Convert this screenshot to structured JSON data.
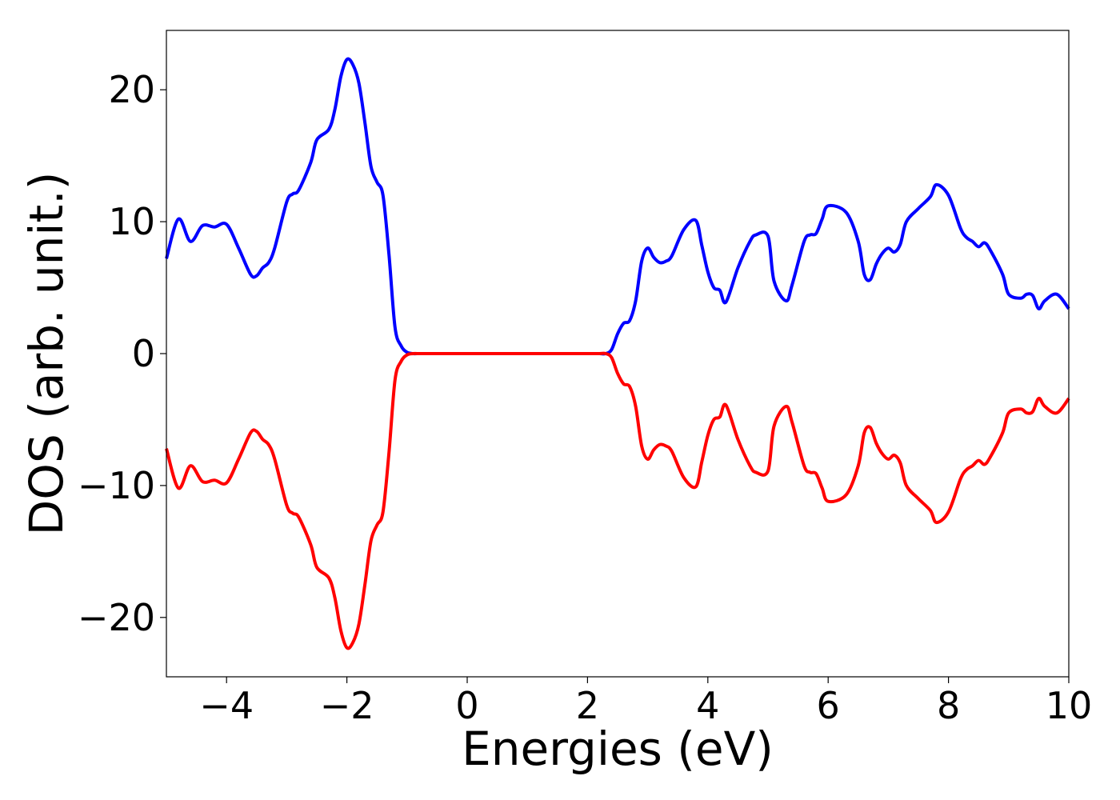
{
  "chart_data": {
    "type": "line",
    "title": "",
    "xlabel": "Energies (eV)",
    "ylabel": "DOS (arb. unit.)",
    "xlim": [
      -5,
      10
    ],
    "ylim": [
      -24.5,
      24.5
    ],
    "xticks": [
      -4,
      -2,
      0,
      2,
      4,
      6,
      8,
      10
    ],
    "xtick_labels": [
      "−4",
      "−2",
      "0",
      "2",
      "4",
      "6",
      "8",
      "10"
    ],
    "yticks": [
      -20,
      -10,
      0,
      10,
      20
    ],
    "ytick_labels": [
      "−20",
      "−10",
      "0",
      "10",
      "20"
    ],
    "grid": false,
    "legend": "none",
    "series": [
      {
        "color": "#0000ff",
        "x": [
          -5.0,
          -4.8,
          -4.6,
          -4.4,
          -4.2,
          -4.0,
          -3.8,
          -3.6,
          -3.5,
          -3.4,
          -3.3,
          -3.2,
          -3.0,
          -2.9,
          -2.8,
          -2.6,
          -2.5,
          -2.3,
          -2.2,
          -2.1,
          -2.0,
          -1.9,
          -1.8,
          -1.7,
          -1.6,
          -1.5,
          -1.4,
          -1.3,
          -1.2,
          -1.1,
          -1.0,
          -0.9,
          -0.8,
          -0.7,
          -0.6,
          -0.5,
          0.0,
          1.0,
          2.0,
          2.2,
          2.3,
          2.4,
          2.5,
          2.6,
          2.7,
          2.8,
          2.9,
          3.0,
          3.1,
          3.2,
          3.3,
          3.4,
          3.6,
          3.8,
          3.9,
          4.0,
          4.1,
          4.2,
          4.3,
          4.5,
          4.7,
          4.8,
          5.0,
          5.1,
          5.3,
          5.4,
          5.6,
          5.7,
          5.8,
          5.9,
          6.0,
          6.3,
          6.5,
          6.6,
          6.7,
          6.8,
          6.9,
          7.0,
          7.1,
          7.2,
          7.3,
          7.5,
          7.7,
          7.8,
          8.0,
          8.2,
          8.3,
          8.4,
          8.5,
          8.6,
          8.7,
          8.9,
          9.0,
          9.2,
          9.3,
          9.4,
          9.5,
          9.6,
          9.8,
          10.0
        ],
        "y": [
          7.2,
          10.2,
          8.5,
          9.7,
          9.6,
          9.8,
          8.0,
          6.0,
          5.9,
          6.5,
          6.9,
          8.0,
          11.5,
          12.1,
          12.4,
          14.5,
          16.2,
          17.0,
          18.5,
          21.0,
          22.3,
          21.9,
          20.5,
          17.5,
          14.2,
          13.0,
          12.0,
          7.5,
          2.0,
          0.6,
          0.1,
          0.0,
          0.0,
          0.0,
          0.0,
          0.0,
          0.0,
          0.0,
          0.0,
          0.0,
          0.0,
          0.3,
          1.5,
          2.3,
          2.5,
          4.0,
          7.0,
          8.0,
          7.3,
          6.9,
          7.0,
          7.4,
          9.4,
          10.1,
          8.2,
          6.2,
          5.0,
          4.8,
          3.9,
          6.5,
          8.5,
          9.0,
          8.9,
          5.5,
          4.0,
          5.2,
          8.5,
          9.0,
          9.1,
          10.2,
          11.2,
          10.7,
          8.5,
          6.0,
          5.6,
          6.8,
          7.6,
          8.0,
          7.7,
          8.3,
          10.0,
          11.0,
          11.9,
          12.8,
          12.0,
          9.5,
          8.8,
          8.5,
          8.1,
          8.4,
          7.8,
          6.0,
          4.5,
          4.2,
          4.5,
          4.4,
          3.4,
          4.0,
          4.5,
          3.4
        ]
      },
      {
        "color": "#ff0000",
        "x": [
          -5.0,
          -4.8,
          -4.6,
          -4.4,
          -4.2,
          -4.0,
          -3.8,
          -3.6,
          -3.5,
          -3.4,
          -3.3,
          -3.2,
          -3.0,
          -2.9,
          -2.8,
          -2.6,
          -2.5,
          -2.3,
          -2.2,
          -2.1,
          -2.0,
          -1.9,
          -1.8,
          -1.7,
          -1.6,
          -1.5,
          -1.4,
          -1.3,
          -1.2,
          -1.1,
          -1.0,
          -0.9,
          -0.8,
          -0.7,
          -0.6,
          -0.5,
          0.0,
          1.0,
          2.0,
          2.2,
          2.3,
          2.4,
          2.5,
          2.6,
          2.7,
          2.8,
          2.9,
          3.0,
          3.1,
          3.2,
          3.3,
          3.4,
          3.6,
          3.8,
          3.9,
          4.0,
          4.1,
          4.2,
          4.3,
          4.5,
          4.7,
          4.8,
          5.0,
          5.1,
          5.3,
          5.4,
          5.6,
          5.7,
          5.8,
          5.9,
          6.0,
          6.3,
          6.5,
          6.6,
          6.7,
          6.8,
          6.9,
          7.0,
          7.1,
          7.2,
          7.3,
          7.5,
          7.7,
          7.8,
          8.0,
          8.2,
          8.3,
          8.4,
          8.5,
          8.6,
          8.7,
          8.9,
          9.0,
          9.2,
          9.3,
          9.4,
          9.5,
          9.6,
          9.8,
          10.0
        ],
        "y": [
          -7.2,
          -10.2,
          -8.5,
          -9.7,
          -9.6,
          -9.8,
          -8.0,
          -6.0,
          -5.9,
          -6.5,
          -6.9,
          -8.0,
          -11.5,
          -12.1,
          -12.4,
          -14.5,
          -16.2,
          -17.0,
          -18.5,
          -21.0,
          -22.3,
          -21.9,
          -20.5,
          -17.5,
          -14.2,
          -13.0,
          -12.0,
          -7.5,
          -2.0,
          -0.6,
          -0.1,
          0.0,
          0.0,
          0.0,
          0.0,
          0.0,
          0.0,
          0.0,
          0.0,
          0.0,
          0.0,
          -0.3,
          -1.5,
          -2.3,
          -2.5,
          -4.0,
          -7.0,
          -8.0,
          -7.3,
          -6.9,
          -7.0,
          -7.4,
          -9.4,
          -10.1,
          -8.2,
          -6.2,
          -5.0,
          -4.8,
          -3.9,
          -6.5,
          -8.5,
          -9.0,
          -8.9,
          -5.5,
          -4.0,
          -5.2,
          -8.5,
          -9.0,
          -9.1,
          -10.2,
          -11.2,
          -10.7,
          -8.5,
          -6.0,
          -5.6,
          -6.8,
          -7.6,
          -8.0,
          -7.7,
          -8.3,
          -10.0,
          -11.0,
          -11.9,
          -12.8,
          -12.0,
          -9.5,
          -8.8,
          -8.5,
          -8.1,
          -8.4,
          -7.8,
          -6.0,
          -4.5,
          -4.2,
          -4.5,
          -4.4,
          -3.4,
          -4.0,
          -4.5,
          -3.4
        ]
      }
    ]
  }
}
